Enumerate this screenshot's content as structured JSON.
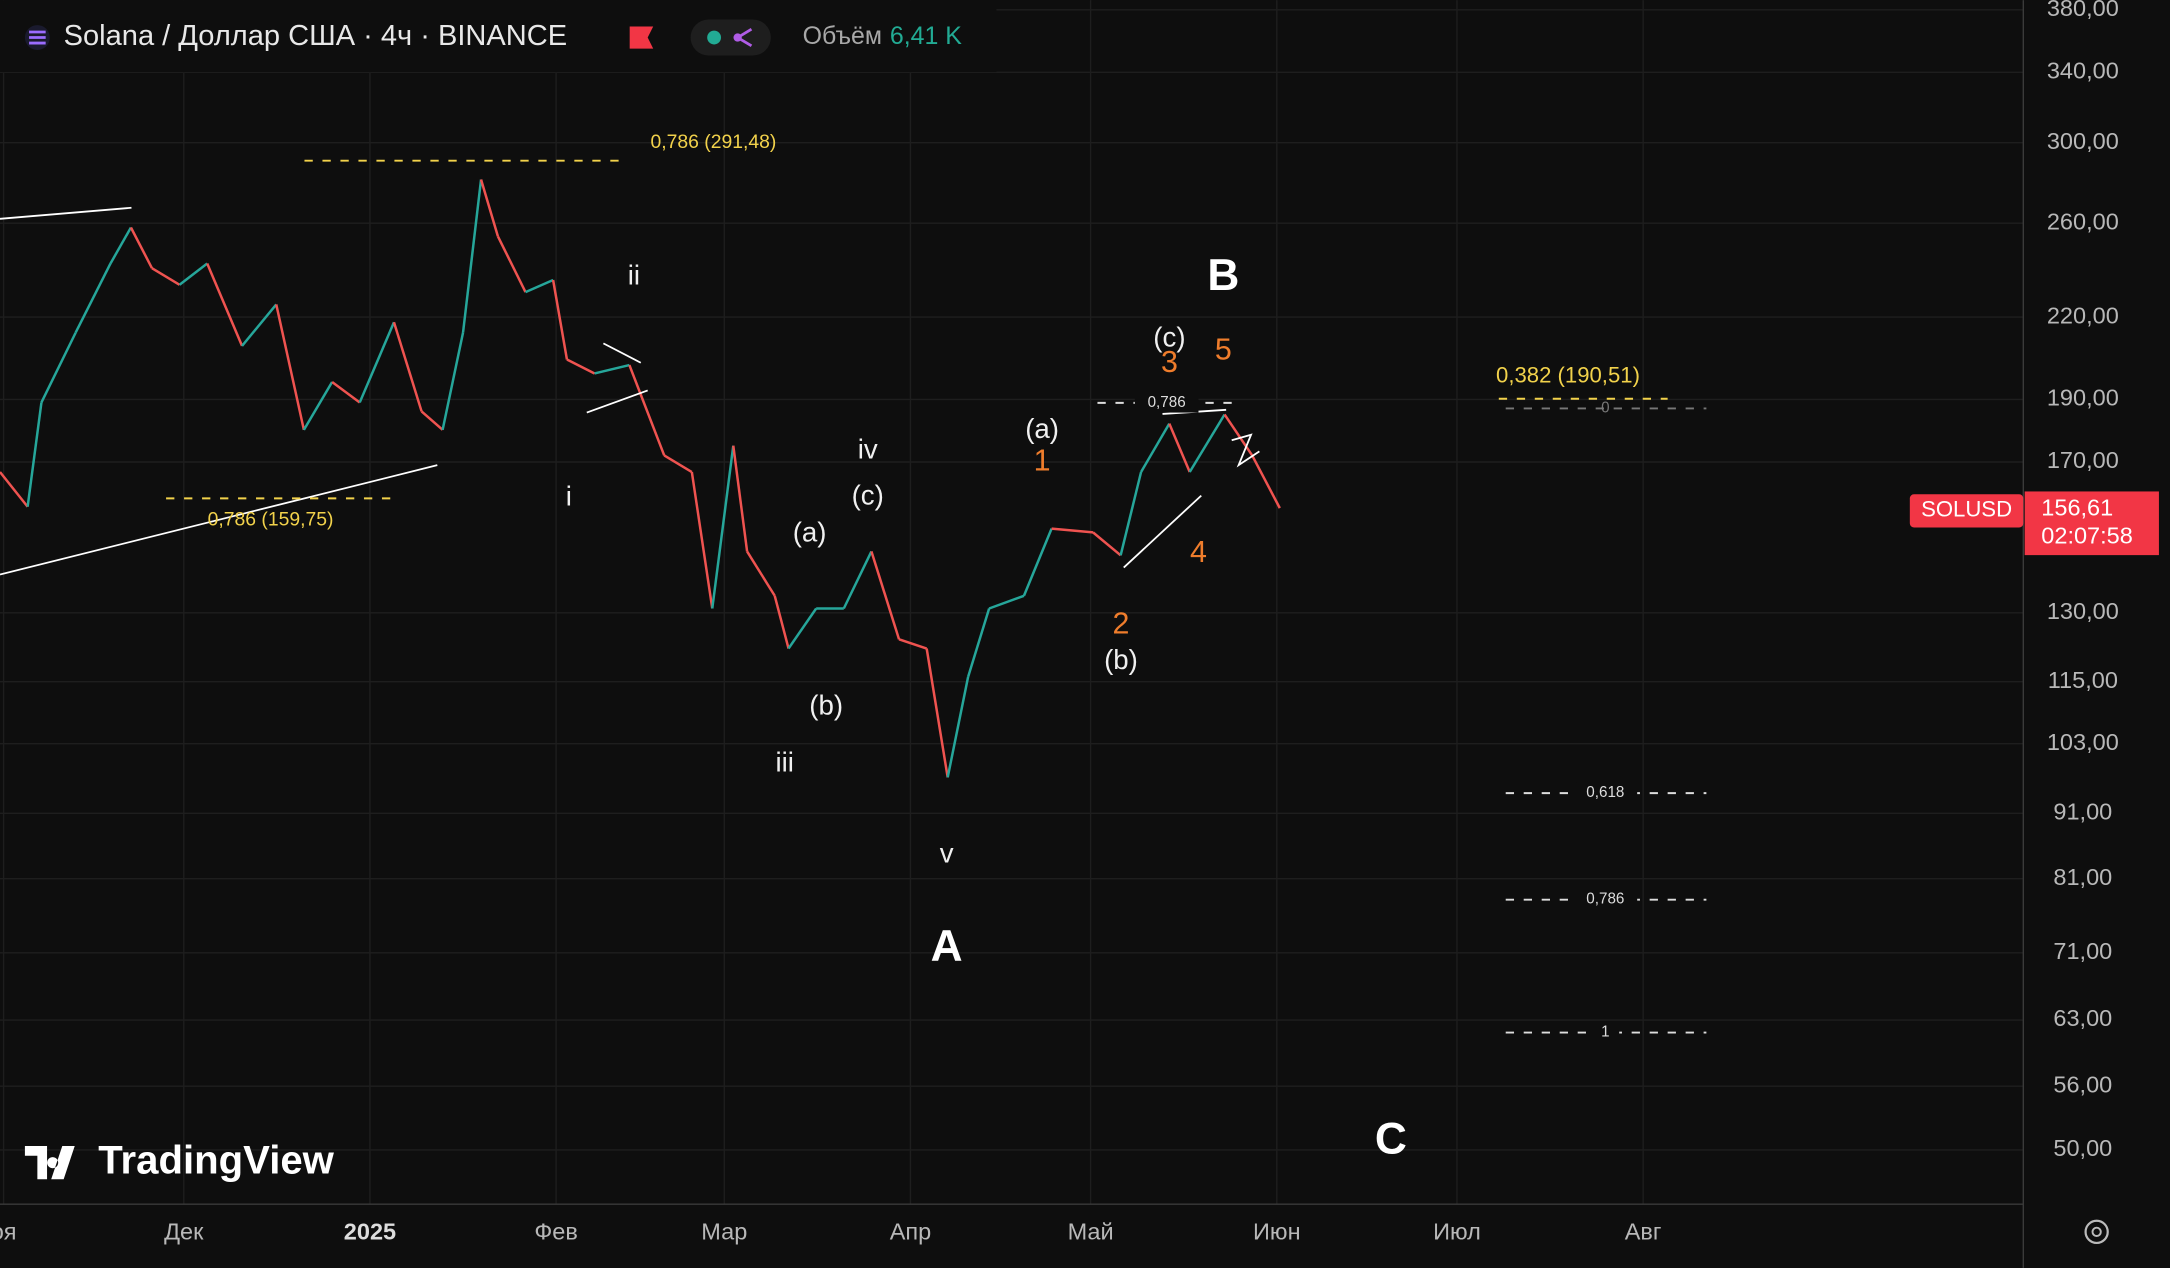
{
  "header": {
    "symbol": "Solana / Доллар США · 4ч · BINANCE",
    "volume_label": "Объём",
    "volume_value": "6,41 K"
  },
  "price_tag": {
    "price": "156,61",
    "countdown": "02:07:58"
  },
  "logo": "TradingView",
  "annotations": [
    "ii",
    "i",
    "iii",
    "(a)",
    "(b)",
    "iv",
    "(c)",
    "v",
    "A",
    "(a)",
    "1",
    "2",
    "(b)",
    "(c)",
    "3",
    "5",
    "4",
    "B",
    "C"
  ],
  "fib": {
    "upper": "0,786 (291,48)",
    "lower": "0,786 (159,75)",
    "target": "0,382 (190,51)",
    "small": "0,786",
    "levels": [
      "0",
      "0,618",
      "0,786",
      "1"
    ]
  },
  "chart_data": {
    "type": "line",
    "log_scale": true,
    "grid": true,
    "series": [
      {
        "name": "SOLUSD",
        "up_color": "#26a69a",
        "down_color": "#ef5350",
        "x": [
          -30.6,
          -26.0,
          -23.7,
          -18.0,
          -12.2,
          -8.8,
          -5.3,
          -0.7,
          3.9,
          9.7,
          15.4,
          20.0,
          24.7,
          29.3,
          35.0,
          39.6,
          43.1,
          46.5,
          49.5,
          52.3,
          56.9,
          61.5,
          63.8,
          68.4,
          74.2,
          80.0,
          84.6,
          88.0,
          91.5,
          93.8,
          98.4,
          100.7,
          105.3,
          109.9,
          114.5,
          119.1,
          123.7,
          127.2,
          130.6,
          134.1,
          139.9,
          144.5,
          151.4,
          156.0,
          159.4,
          164.1,
          167.5,
          173.3,
          177.9,
          182.5
        ],
        "values": [
          167,
          157,
          189,
          214,
          242,
          258,
          240,
          233,
          242,
          209,
          225,
          180,
          196,
          189,
          218,
          186,
          180,
          214,
          281,
          254,
          230,
          235,
          204,
          199,
          202,
          172,
          167,
          131,
          175,
          145,
          134,
          122,
          131,
          131,
          145,
          124,
          122,
          97,
          116,
          131,
          134,
          151,
          150,
          144,
          167,
          182,
          167,
          185,
          172,
          156.61
        ]
      }
    ],
    "xlim": [
      -30.6,
      306.3
    ],
    "xticks": [
      {
        "value": -30,
        "label": "оя"
      },
      {
        "value": 0,
        "label": "Дек"
      },
      {
        "value": 31,
        "label": "2025"
      },
      {
        "value": 62,
        "label": "Фев"
      },
      {
        "value": 90,
        "label": "Мар"
      },
      {
        "value": 121,
        "label": "Апр"
      },
      {
        "value": 151,
        "label": "Май"
      },
      {
        "value": 182,
        "label": "Июн"
      },
      {
        "value": 212,
        "label": "Июл"
      },
      {
        "value": 243,
        "label": "Авг"
      }
    ],
    "ylim": [
      45.4,
      386.6
    ],
    "yticks": [
      {
        "value": 380,
        "label": "380,00"
      },
      {
        "value": 340,
        "label": "340,00"
      },
      {
        "value": 300,
        "label": "300,00"
      },
      {
        "value": 260,
        "label": "260,00"
      },
      {
        "value": 220,
        "label": "220,00"
      },
      {
        "value": 190,
        "label": "190,00"
      },
      {
        "value": 170,
        "label": "170,00"
      },
      {
        "value": 130,
        "label": "130,00"
      },
      {
        "value": 115,
        "label": "115,00"
      },
      {
        "value": 103,
        "label": "103,00"
      },
      {
        "value": 91,
        "label": "91,00"
      },
      {
        "value": 81,
        "label": "81,00"
      },
      {
        "value": 71,
        "label": "71,00"
      },
      {
        "value": 63,
        "label": "63,00"
      },
      {
        "value": 56,
        "label": "56,00"
      },
      {
        "value": 50,
        "label": "50,00"
      }
    ]
  }
}
